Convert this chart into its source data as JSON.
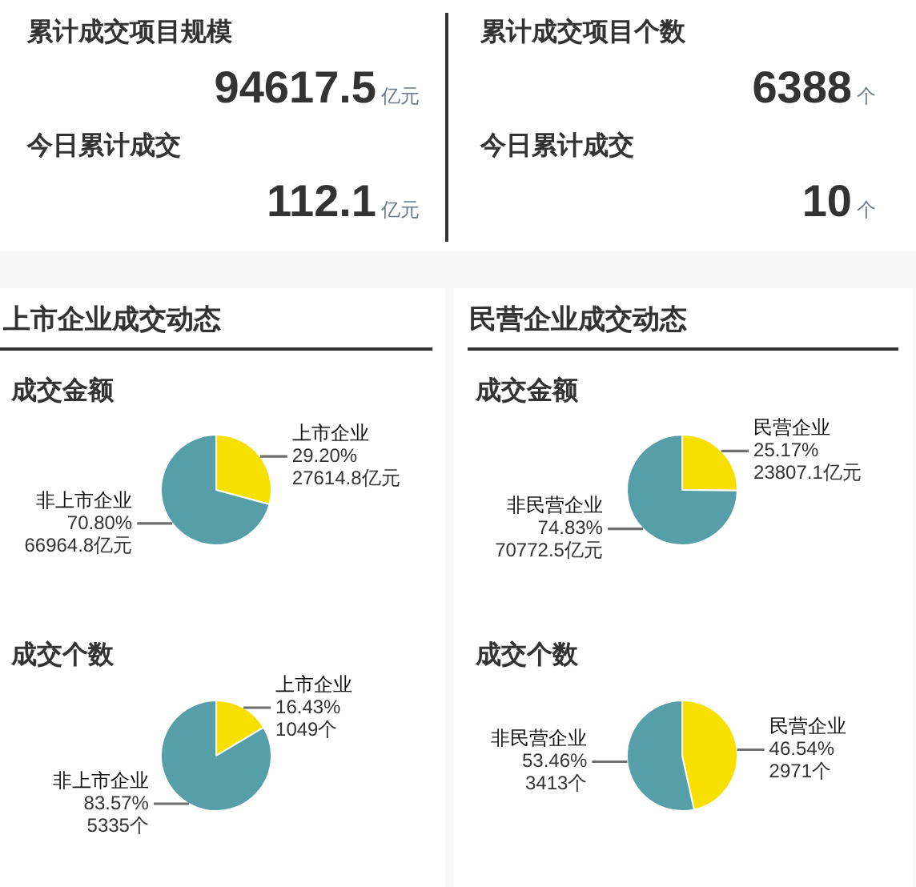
{
  "chart_data": [
    {
      "type": "other",
      "annotations": [
        "累计成交项目规模",
        "94617.5",
        "亿元",
        "累计成交项目个数",
        "6388",
        "个",
        "今日累计成交",
        "112.1",
        "亿元",
        "今日累计成交",
        "10",
        "个"
      ]
    },
    {
      "type": "pie",
      "title": "上市企业成交动态",
      "subtitle": "成交金额",
      "categories": [
        "上市企业",
        "非上市企业"
      ],
      "values": [
        27614.8,
        66964.8
      ],
      "colors": [
        "#f7e000",
        "#579fa8"
      ],
      "value_labels": [
        "29.20%\n27614.8亿元",
        "70.80%\n66964.8亿元"
      ]
    },
    {
      "type": "pie",
      "title": "成交个数",
      "categories": [
        "上市企业",
        "非上市企业"
      ],
      "values": [
        1049,
        5335
      ],
      "colors": [
        "#f7e000",
        "#579fa8"
      ],
      "value_labels": [
        "16.43%\n1049个",
        "83.57%\n5335个"
      ]
    },
    {
      "type": "pie",
      "title": "民营企业成交动态",
      "subtitle": "成交金额",
      "categories": [
        "民营企业",
        "非民营企业"
      ],
      "values": [
        23807.1,
        70772.5
      ],
      "colors": [
        "#f7e000",
        "#579fa8"
      ],
      "value_labels": [
        "25.17%\n23807.1亿元",
        "74.83%\n70772.5亿元"
      ]
    },
    {
      "type": "pie",
      "title": "成交个数",
      "categories": [
        "民营企业",
        "非民营企业"
      ],
      "values": [
        2971,
        3413
      ],
      "colors": [
        "#f7e000",
        "#579fa8"
      ],
      "value_labels": [
        "46.54%\n2971个",
        "53.46%\n3413个"
      ]
    }
  ]
}
